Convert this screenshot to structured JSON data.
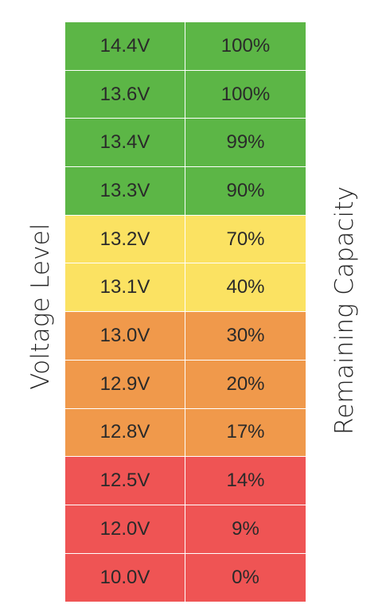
{
  "chart_data": {
    "type": "table",
    "axis_left_label": "Voltage Level",
    "axis_right_label": "Remaining Capacity",
    "columns": [
      "Voltage Level",
      "Remaining Capacity"
    ],
    "rows": [
      {
        "voltage": "14.4V",
        "capacity": "100%",
        "color": "#5cb646"
      },
      {
        "voltage": "13.6V",
        "capacity": "100%",
        "color": "#5cb646"
      },
      {
        "voltage": "13.4V",
        "capacity": "99%",
        "color": "#5cb646"
      },
      {
        "voltage": "13.3V",
        "capacity": "90%",
        "color": "#5cb646"
      },
      {
        "voltage": "13.2V",
        "capacity": "70%",
        "color": "#fbe262"
      },
      {
        "voltage": "13.1V",
        "capacity": "40%",
        "color": "#fbe262"
      },
      {
        "voltage": "13.0V",
        "capacity": "30%",
        "color": "#f0994b"
      },
      {
        "voltage": "12.9V",
        "capacity": "20%",
        "color": "#f0994b"
      },
      {
        "voltage": "12.8V",
        "capacity": "17%",
        "color": "#f0994b"
      },
      {
        "voltage": "12.5V",
        "capacity": "14%",
        "color": "#ef5454"
      },
      {
        "voltage": "12.0V",
        "capacity": "9%",
        "color": "#ef5454"
      },
      {
        "voltage": "10.0V",
        "capacity": "0%",
        "color": "#ef5454"
      }
    ],
    "colors": {
      "full": "#5cb646",
      "medium": "#fbe262",
      "low": "#f0994b",
      "critical": "#ef5454"
    }
  }
}
